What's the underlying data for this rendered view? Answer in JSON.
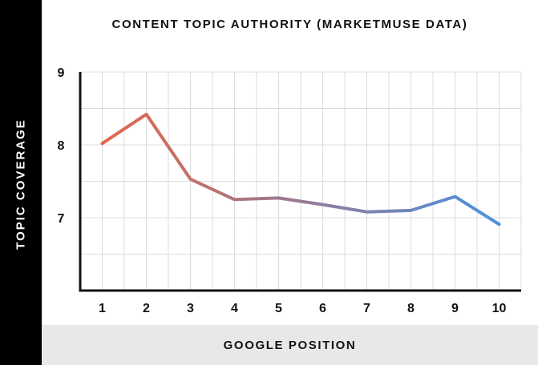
{
  "chart_data": {
    "type": "line",
    "title": "CONTENT TOPIC AUTHORITY (MARKETMUSE DATA)",
    "xlabel": "GOOGLE POSITION",
    "ylabel": "TOPIC COVERAGE",
    "categories": [
      "1",
      "2",
      "3",
      "4",
      "5",
      "6",
      "7",
      "8",
      "9",
      "10"
    ],
    "x": [
      1,
      2,
      3,
      4,
      5,
      6,
      7,
      8,
      9,
      10
    ],
    "series": [
      {
        "values": [
          8.02,
          8.42,
          7.53,
          7.25,
          7.27,
          7.18,
          7.08,
          7.1,
          7.29,
          6.91
        ]
      }
    ],
    "xlim": [
      0.5,
      10.5
    ],
    "ylim": [
      6.0,
      9.0
    ],
    "yticks": [
      7,
      8,
      9
    ],
    "grid": true,
    "colors": {
      "gradient_start": "#e4674a",
      "gradient_end": "#4a90e2",
      "axis": "#111111",
      "grid": "#dcdcdc",
      "left_band": "#000000",
      "bottom_band": "#e8e8e8"
    }
  }
}
